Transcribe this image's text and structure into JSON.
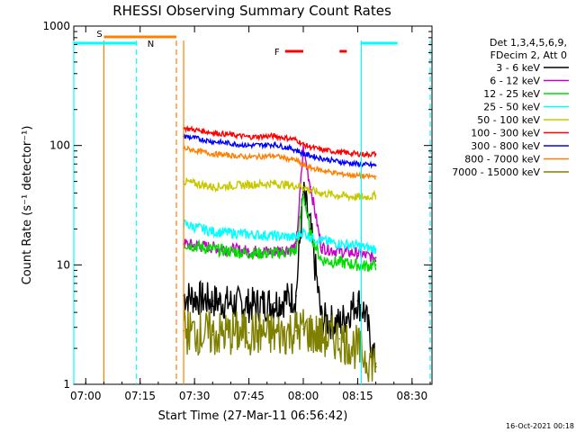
{
  "chart_data": {
    "type": "line",
    "title": "RHESSI Observing Summary Count Rates",
    "xlabel": "Start Time (27-Mar-11 06:56:42)",
    "ylabel": "Count Rate (s⁻¹ detector⁻¹)",
    "y_scale": "log",
    "xlim": [
      "06:56:42",
      "08:35:30"
    ],
    "ylim": [
      1,
      1000
    ],
    "x_ticks": [
      "07:00",
      "07:15",
      "07:30",
      "07:45",
      "08:00",
      "08:15",
      "08:30"
    ],
    "y_ticks": [
      "1",
      "10",
      "100",
      "1000"
    ],
    "legend": {
      "position": "top-right",
      "header": [
        "Det 1,3,4,5,6,9,",
        "FDecim 2, Att 0"
      ]
    },
    "timestamp": "16-Oct-2021 00:18",
    "series": [
      {
        "name": "3 - 6 keV",
        "color": "#000000",
        "x": [
          "07:27",
          "07:35",
          "07:45",
          "07:52",
          "07:58",
          "08:00",
          "08:02",
          "08:05",
          "08:10",
          "08:15",
          "08:17",
          "08:20"
        ],
        "values": [
          5.5,
          5.0,
          4.6,
          4.8,
          5.5,
          40,
          20,
          3.5,
          3.2,
          5.0,
          4.0,
          1.4
        ]
      },
      {
        "name": "6 - 12 keV",
        "color": "#c800c8",
        "x": [
          "07:27",
          "07:35",
          "07:45",
          "07:52",
          "07:58",
          "08:00",
          "08:02",
          "08:05",
          "08:10",
          "08:15",
          "08:17",
          "08:20"
        ],
        "values": [
          15,
          14,
          13,
          13,
          14,
          95,
          45,
          14,
          13,
          12.5,
          12,
          11.5
        ]
      },
      {
        "name": "12 - 25 keV",
        "color": "#00dc00",
        "x": [
          "07:27",
          "07:35",
          "07:45",
          "07:52",
          "07:58",
          "08:00",
          "08:02",
          "08:05",
          "08:10",
          "08:15",
          "08:17",
          "08:20"
        ],
        "values": [
          15,
          13.5,
          12.5,
          12.5,
          13,
          40,
          18,
          11,
          10.5,
          10,
          9.8,
          10
        ]
      },
      {
        "name": "25 - 50 keV",
        "color": "#00ffff",
        "x": [
          "07:27",
          "07:35",
          "07:45",
          "07:52",
          "07:58",
          "08:00",
          "08:02",
          "08:05",
          "08:10",
          "08:15",
          "08:17",
          "08:20"
        ],
        "values": [
          22,
          19,
          18,
          17.5,
          17,
          19,
          17,
          16,
          15,
          14.5,
          14,
          13.5
        ]
      },
      {
        "name": "50 - 100 keV",
        "color": "#c8c800",
        "x": [
          "07:27",
          "07:35",
          "07:45",
          "07:52",
          "07:58",
          "08:00",
          "08:02",
          "08:05",
          "08:10",
          "08:15",
          "08:17",
          "08:20"
        ],
        "values": [
          50,
          45,
          47,
          48,
          46,
          45,
          42,
          40,
          38,
          37,
          37,
          38
        ]
      },
      {
        "name": "100 - 300 keV",
        "color": "#ff0000",
        "x": [
          "07:27",
          "07:35",
          "07:45",
          "07:52",
          "07:58",
          "08:00",
          "08:02",
          "08:05",
          "08:10",
          "08:15",
          "08:17",
          "08:20"
        ],
        "values": [
          140,
          128,
          118,
          120,
          112,
          102,
          97,
          92,
          88,
          85,
          84,
          85
        ]
      },
      {
        "name": "300 - 800 keV",
        "color": "#0000ff",
        "x": [
          "07:27",
          "07:35",
          "07:45",
          "07:52",
          "07:58",
          "08:00",
          "08:02",
          "08:05",
          "08:10",
          "08:15",
          "08:17",
          "08:20"
        ],
        "values": [
          120,
          108,
          100,
          102,
          92,
          85,
          82,
          78,
          73,
          70,
          69,
          68
        ]
      },
      {
        "name": "800 - 7000 keV",
        "color": "#ff8000",
        "x": [
          "07:27",
          "07:35",
          "07:45",
          "07:52",
          "07:58",
          "08:00",
          "08:02",
          "08:05",
          "08:10",
          "08:15",
          "08:17",
          "08:20"
        ],
        "values": [
          95,
          85,
          80,
          82,
          75,
          68,
          65,
          62,
          58,
          56,
          55,
          55
        ]
      },
      {
        "name": "7000 - 15000 keV",
        "color": "#808000",
        "x": [
          "07:27",
          "07:35",
          "07:45",
          "07:52",
          "07:58",
          "08:00",
          "08:02",
          "08:05",
          "08:10",
          "08:15",
          "08:17",
          "08:20"
        ],
        "values": [
          2.8,
          2.6,
          2.7,
          2.6,
          2.8,
          2.9,
          2.7,
          2.5,
          2.4,
          2.0,
          1.7,
          1.5
        ]
      }
    ],
    "observing_flags": [
      {
        "label": "S",
        "color": "#ff8000",
        "level": 800,
        "start": "07:05",
        "end": "07:25"
      },
      {
        "label": "N",
        "color": "#00ffff",
        "level": 650,
        "start": "06:56:42",
        "end": "07:14",
        "start2": "08:16",
        "end2": "08:26"
      },
      {
        "label": "F",
        "color": "#ff0000",
        "level": 650,
        "start": "07:55",
        "end": "08:00",
        "start2": "08:10",
        "end2": "08:12"
      }
    ],
    "vertical_markers": [
      {
        "time": "06:56:42",
        "color": "#00ffff",
        "style": "solid"
      },
      {
        "time": "07:05",
        "color": "#ff8000",
        "style": "solid"
      },
      {
        "time": "07:14",
        "color": "#00ffff",
        "style": "dashed"
      },
      {
        "time": "07:25",
        "color": "#ff8000",
        "style": "dashed"
      },
      {
        "time": "07:27",
        "color": "#ff8000",
        "style": "solid"
      },
      {
        "time": "08:16",
        "color": "#00ffff",
        "style": "solid"
      },
      {
        "time": "08:35",
        "color": "#00ffff",
        "style": "dashed"
      }
    ]
  }
}
